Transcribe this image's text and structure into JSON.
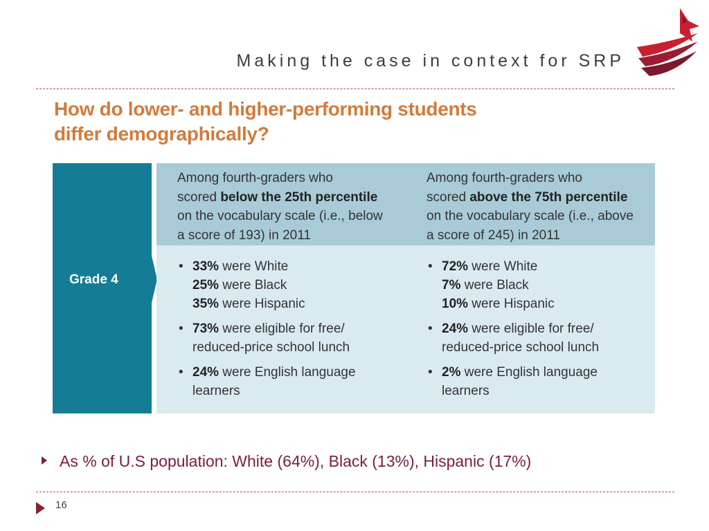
{
  "header": {
    "title": "Making the case in context for SRP"
  },
  "logo": {
    "icon": "cardinal-logo-icon",
    "colors": {
      "red": "#c8202f",
      "dark": "#7b1a2c"
    }
  },
  "figure": {
    "heading_line1": "How do lower- and higher-performing students",
    "heading_line2": "differ demographically?",
    "row_label": "Grade 4",
    "left": {
      "intro_a": "Among fourth-graders who",
      "intro_b": "scored ",
      "intro_emph": "below the 25th percentile",
      "intro_c": "on the vocabulary scale (i.e., below",
      "intro_d": "a score of 193) in 2011",
      "race": [
        {
          "pct": "33%",
          "text": " were White"
        },
        {
          "pct": "25%",
          "text": " were Black"
        },
        {
          "pct": "35%",
          "text": " were Hispanic"
        }
      ],
      "lunch": {
        "pct": "73%",
        "text": " were eligible for free/",
        "text2": "reduced-price school lunch"
      },
      "ell": {
        "pct": "24%",
        "text": " were English language",
        "text2": "learners"
      }
    },
    "right": {
      "intro_a": "Among fourth-graders who",
      "intro_b": "scored ",
      "intro_emph": "above the 75th percentile",
      "intro_c": "on the vocabulary scale (i.e., above",
      "intro_d": "a score of 245) in 2011",
      "race": [
        {
          "pct": "72%",
          "text": " were White"
        },
        {
          "pct": "7%",
          "text": " were Black"
        },
        {
          "pct": "10%",
          "text": " were Hispanic"
        }
      ],
      "lunch": {
        "pct": "24%",
        "text": " were eligible for free/",
        "text2": "reduced-price school lunch"
      },
      "ell": {
        "pct": "2%",
        "text": " were English language",
        "text2": "learners"
      }
    },
    "bullet_symbol": "•",
    "colors": {
      "heading": "#d27b3b",
      "teal": "#147d95",
      "head_bg": "#a9cbd8",
      "body_bg": "#dbeaf0"
    }
  },
  "bullet": {
    "text": "As % of U.S population: White (64%), Black (13%), Hispanic (17%)"
  },
  "footer": {
    "page_number": "16"
  }
}
